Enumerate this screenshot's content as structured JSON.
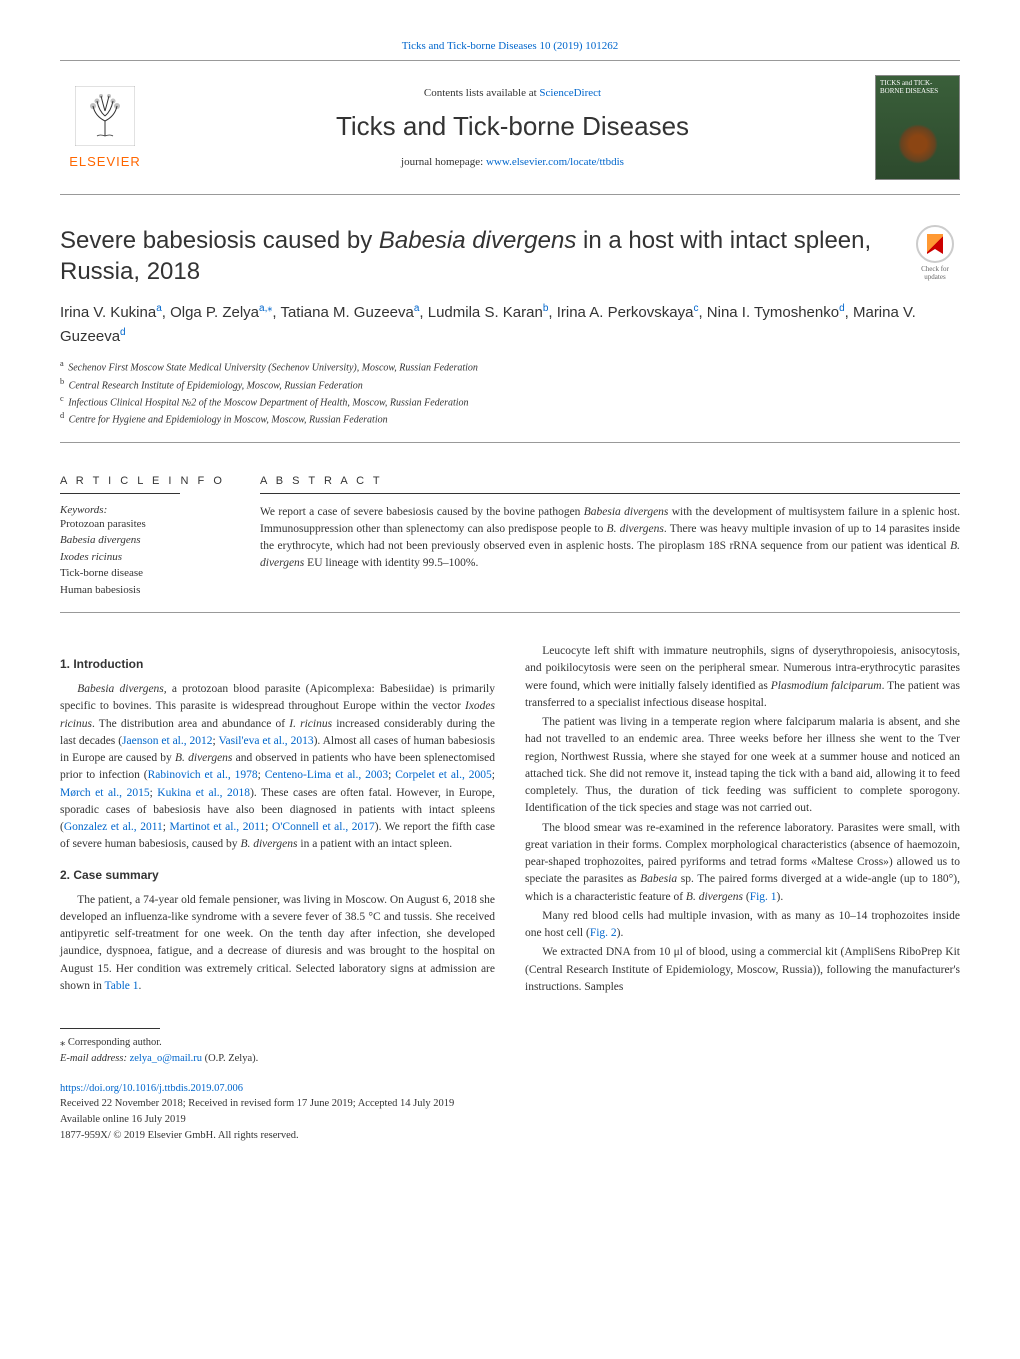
{
  "header": {
    "citation": "Ticks and Tick-borne Diseases 10 (2019) 101262",
    "contents_text": "Contents lists available at ",
    "contents_link": "ScienceDirect",
    "journal_title": "Ticks and Tick-borne Diseases",
    "homepage_text": "journal homepage: ",
    "homepage_link": "www.elsevier.com/locate/ttbdis",
    "publisher": "ELSEVIER",
    "cover_title": "TICKS and TICK-BORNE DISEASES"
  },
  "check_updates": "Check for updates",
  "title_parts": {
    "pre": "Severe babesiosis caused by ",
    "italic": "Babesia divergens",
    "post": " in a host with intact spleen, Russia, 2018"
  },
  "authors": [
    {
      "name": "Irina V. Kukina",
      "sup": "a"
    },
    {
      "name": "Olga P. Zelya",
      "sup": "a,",
      "star": "⁎"
    },
    {
      "name": "Tatiana M. Guzeeva",
      "sup": "a"
    },
    {
      "name": "Ludmila S. Karan",
      "sup": "b"
    },
    {
      "name": "Irina A. Perkovskaya",
      "sup": "c"
    },
    {
      "name": "Nina I. Tymoshenko",
      "sup": "d"
    },
    {
      "name": "Marina V. Guzeeva",
      "sup": "d"
    }
  ],
  "affiliations": [
    {
      "sup": "a",
      "text": "Sechenov First Moscow State Medical University (Sechenov University), Moscow, Russian Federation"
    },
    {
      "sup": "b",
      "text": "Central Research Institute of Epidemiology, Moscow, Russian Federation"
    },
    {
      "sup": "c",
      "text": "Infectious Clinical Hospital №2 of the Moscow Department of Health, Moscow, Russian Federation"
    },
    {
      "sup": "d",
      "text": "Centre for Hygiene and Epidemiology in Moscow, Moscow, Russian Federation"
    }
  ],
  "article_info_heading": "A R T I C L E  I N F O",
  "keywords_label": "Keywords:",
  "keywords": [
    "Protozoan parasites",
    "Babesia divergens",
    "Ixodes ricinus",
    "Tick-borne disease",
    "Human babesiosis"
  ],
  "abstract_heading": "A B S T R A C T",
  "abstract_text": "We report a case of severe babesiosis caused by the bovine pathogen Babesia divergens with the development of multisystem failure in a splenic host. Immunosuppression other than splenectomy can also predispose people to B. divergens. There was heavy multiple invasion of up to 14 parasites inside the erythrocyte, which had not been previously observed even in asplenic hosts. The piroplasm 18S rRNA sequence from our patient was identical B. divergens EU lineage with identity 99.5–100%.",
  "sections": {
    "intro_heading": "1. Introduction",
    "intro_p1_pre": "Babesia divergens,",
    "intro_p1": " a protozoan blood parasite (Apicomplexa: Babesiidae) is primarily specific to bovines. This parasite is widespread throughout Europe within the vector Ixodes ricinus. The distribution area and abundance of I. ricinus increased considerably during the last decades (",
    "intro_links1": "Jaenson et al., 2012",
    "intro_p1b": "; ",
    "intro_links2": "Vasil'eva et al., 2013",
    "intro_p1c": "). Almost all cases of human babesiosis in Europe are caused by B. divergens and observed in patients who have been splenectomised prior to infection (",
    "intro_links3": "Rabinovich et al., 1978",
    "intro_p1d": "; ",
    "intro_links4": "Centeno-Lima et al., 2003",
    "intro_p1e": "; ",
    "intro_links5": "Corpelet et al., 2005",
    "intro_p1f": "; ",
    "intro_links6": "Mørch et al., 2015",
    "intro_p1g": "; ",
    "intro_links7": "Kukina et al., 2018",
    "intro_p1h": "). These cases are often fatal. However, in Europe, sporadic cases of babesiosis have also been diagnosed in patients with intact spleens (",
    "intro_links8": "Gonzalez et al., 2011",
    "intro_p1i": "; ",
    "intro_links9": "Martinot et al., 2011",
    "intro_p1j": "; ",
    "intro_links10": "O'Connell et al., 2017",
    "intro_p1k": "). We report the fifth case of severe human babesiosis, caused by B. divergens in a patient with an intact spleen.",
    "case_heading": "2. Case summary",
    "case_p1": "The patient, a 74-year old female pensioner, was living in Moscow. On August 6, 2018 she developed an influenza-like syndrome with a severe fever of 38.5 °C and tussis. She received antipyretic self-treatment for one week. On the tenth day after infection, she developed jaundice, dyspnoea, fatigue, and a decrease of diuresis and was brought to the hospital on August 15. Her condition was extremely critical. Selected laboratory signs at admission are shown in ",
    "case_table_link": "Table 1",
    "case_p1_end": ".",
    "col2_p1": "Leucocyte left shift with immature neutrophils, signs of dyserythropoiesis, anisocytosis, and poikilocytosis were seen on the peripheral smear. Numerous intra-erythrocytic parasites were found, which were initially falsely identified as Plasmodium falciparum. The patient was transferred to a specialist infectious disease hospital.",
    "col2_p2": "The patient was living in a temperate region where falciparum malaria is absent, and she had not travelled to an endemic area. Three weeks before her illness she went to the Tver region, Northwest Russia, where she stayed for one week at a summer house and noticed an attached tick. She did not remove it, instead taping the tick with a band aid, allowing it to feed completely. Thus, the duration of tick feeding was sufficient to complete sporogony. Identification of the tick species and stage was not carried out.",
    "col2_p3a": "The blood smear was re-examined in the reference laboratory. Parasites were small, with great variation in their forms. Complex morphological characteristics (absence of haemozoin, pear-shaped trophozoites, paired pyriforms and tetrad forms «Maltese Cross») allowed us to speciate the parasites as Babesia sp. The paired forms diverged at a wide-angle (up to 180°), which is a characteristic feature of B. divergens (",
    "col2_fig1": "Fig. 1",
    "col2_p3b": ").",
    "col2_p4a": "Many red blood cells had multiple invasion, with as many as 10–14 trophozoites inside one host cell (",
    "col2_fig2": "Fig. 2",
    "col2_p4b": ").",
    "col2_p5": "We extracted DNA from 10 μl of blood, using a commercial kit (AmpliSens RiboPrep Kit (Central Research Institute of Epidemiology, Moscow, Russia)), following the manufacturer's instructions. Samples"
  },
  "footer": {
    "corresponding": "⁎ Corresponding author.",
    "email_label": "E-mail address: ",
    "email": "zelya_o@mail.ru",
    "email_name": " (O.P. Zelya).",
    "doi": "https://doi.org/10.1016/j.ttbdis.2019.07.006",
    "received": "Received 22 November 2018; Received in revised form 17 June 2019; Accepted 14 July 2019",
    "available": "Available online 16 July 2019",
    "copyright": "1877-959X/ © 2019 Elsevier GmbH. All rights reserved."
  }
}
